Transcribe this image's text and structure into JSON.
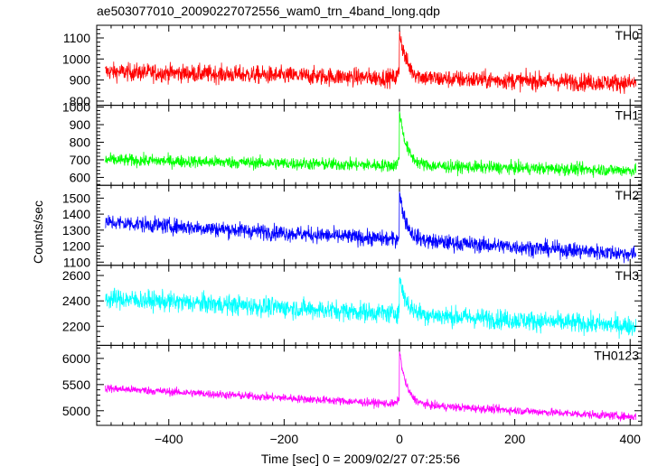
{
  "chart_data": {
    "type": "line",
    "title": "ae503077010_20090227072556_wam0_trn_4band_long.qdp",
    "xlabel": "Time [sec] 0 = 2009/02/27 07:25:56",
    "ylabel": "Counts/sec",
    "xlim": [
      -525,
      420
    ],
    "x_data_range": [
      -510,
      410
    ],
    "xticks": [
      -400,
      -200,
      0,
      200,
      400
    ],
    "grid": false,
    "legend": "none",
    "panels": [
      {
        "name": "TH0",
        "color": "#ff0000",
        "ylim": [
          780,
          1160
        ],
        "yticks": [
          800,
          900,
          1000,
          1100
        ],
        "baseline_start": 940,
        "baseline_end": 885,
        "noise": 30,
        "peak": 1150
      },
      {
        "name": "TH1",
        "color": "#00ff00",
        "ylim": [
          555,
          1010
        ],
        "yticks": [
          600,
          700,
          800,
          900,
          1000
        ],
        "baseline_start": 700,
        "baseline_end": 640,
        "noise": 25,
        "peak": 1000
      },
      {
        "name": "TH2",
        "color": "#0000ff",
        "ylim": [
          1080,
          1580
        ],
        "yticks": [
          1100,
          1200,
          1300,
          1400,
          1500
        ],
        "baseline_start": 1350,
        "baseline_end": 1150,
        "noise": 35,
        "peak": 1550
      },
      {
        "name": "TH3",
        "color": "#00ffff",
        "ylim": [
          2050,
          2680
        ],
        "yticks": [
          2200,
          2400,
          2600
        ],
        "baseline_start": 2420,
        "baseline_end": 2200,
        "noise": 55,
        "peak": 2600
      },
      {
        "name": "TH0123",
        "color": "#ff00ff",
        "ylim": [
          4720,
          6250
        ],
        "yticks": [
          5000,
          5500,
          6000
        ],
        "baseline_start": 5430,
        "baseline_end": 4880,
        "noise": 55,
        "peak": 6200
      }
    ]
  }
}
